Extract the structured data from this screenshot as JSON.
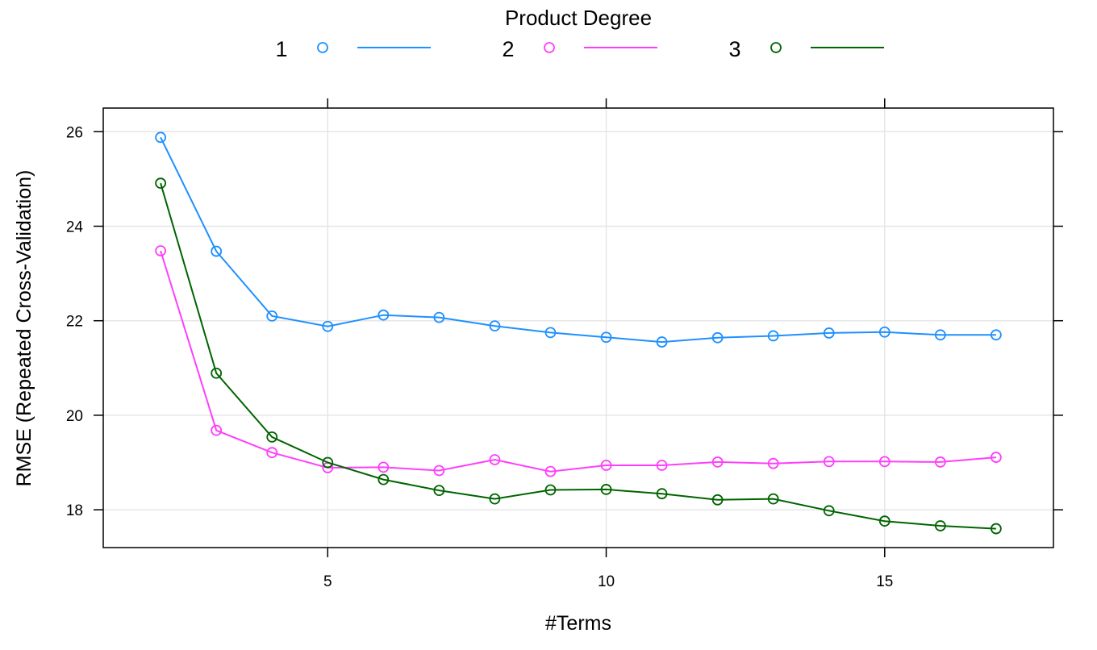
{
  "chart_data": {
    "type": "line",
    "xlabel": "#Terms",
    "ylabel": "RMSE (Repeated Cross-Validation)",
    "xlim": [
      0.97,
      18.03
    ],
    "ylim": [
      17.2,
      26.5
    ],
    "x_ticks": [
      5,
      10,
      15
    ],
    "y_ticks": [
      18,
      20,
      22,
      24,
      26
    ],
    "x_tick_labels": [
      "5",
      "10",
      "15"
    ],
    "y_tick_labels": [
      "18",
      "20",
      "22",
      "24",
      "26"
    ],
    "grid": true,
    "legend": {
      "title": "Product Degree",
      "placement": "top"
    },
    "x": [
      2,
      3,
      4,
      5,
      6,
      7,
      8,
      9,
      10,
      11,
      12,
      13,
      14,
      15,
      16,
      17
    ],
    "series": [
      {
        "name": "1",
        "color": "#1e90ff",
        "values": [
          25.88,
          23.47,
          22.1,
          21.88,
          22.12,
          22.07,
          21.89,
          21.75,
          21.65,
          21.55,
          21.64,
          21.68,
          21.74,
          21.76,
          21.7,
          21.7
        ]
      },
      {
        "name": "2",
        "color": "#ff3efc",
        "values": [
          23.48,
          19.68,
          19.21,
          18.89,
          18.9,
          18.83,
          19.06,
          18.81,
          18.94,
          18.94,
          19.01,
          18.98,
          19.02,
          19.02,
          19.01,
          19.11
        ]
      },
      {
        "name": "3",
        "color": "#006400",
        "values": [
          24.91,
          20.89,
          19.54,
          19.0,
          18.64,
          18.41,
          18.23,
          18.42,
          18.43,
          18.34,
          18.21,
          18.23,
          17.98,
          17.76,
          17.66,
          17.6
        ]
      }
    ]
  }
}
